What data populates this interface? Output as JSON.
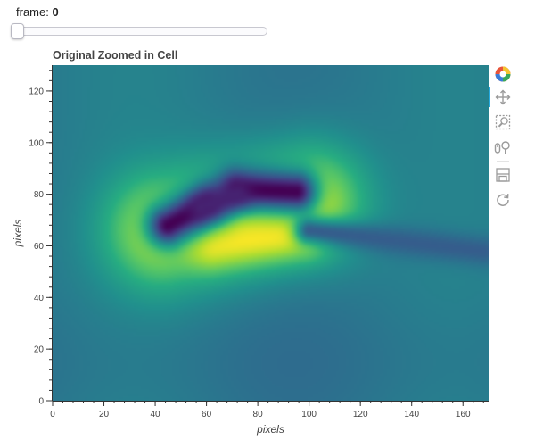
{
  "slider": {
    "label_prefix": "frame: ",
    "value_text": "0",
    "value": 0,
    "min": 0,
    "max": 100
  },
  "plot": {
    "title": "Original Zoomed in Cell",
    "xlabel": "pixels",
    "ylabel": "pixels"
  },
  "toolbar": {
    "tools": [
      {
        "name": "bokeh-logo-icon"
      },
      {
        "name": "pan-tool-icon"
      },
      {
        "name": "box-zoom-tool-icon"
      },
      {
        "name": "wheel-zoom-tool-icon"
      },
      {
        "name": "save-tool-icon"
      },
      {
        "name": "reset-tool-icon"
      }
    ],
    "active_color": "#26aae1"
  },
  "chart_data": {
    "type": "heatmap",
    "title": "Original Zoomed in Cell",
    "xlabel": "pixels",
    "ylabel": "pixels",
    "xlim": [
      0,
      170
    ],
    "ylim": [
      0,
      130
    ],
    "x_ticks": [
      0,
      20,
      40,
      60,
      80,
      100,
      120,
      140,
      160
    ],
    "y_ticks": [
      0,
      20,
      40,
      60,
      80,
      100,
      120
    ],
    "colormap": "viridis",
    "background_level": 0.42,
    "features": [
      {
        "kind": "bright-halo",
        "x0": 43,
        "y0": 66,
        "x1": 100,
        "y1": 77,
        "width": 15,
        "level": 0.96
      },
      {
        "kind": "bright-band",
        "x0": 63,
        "y0": 62,
        "x1": 97,
        "y1": 66,
        "width": 7,
        "level": 1.0
      },
      {
        "kind": "dark-body",
        "x0": 45,
        "y0": 68,
        "x1": 60,
        "y1": 76,
        "width": 6,
        "level": 0.0
      },
      {
        "kind": "dark-body",
        "x0": 72,
        "y0": 82,
        "x1": 95,
        "y1": 81,
        "width": 6,
        "level": 0.0
      },
      {
        "kind": "dark-body",
        "x0": 58,
        "y0": 75,
        "x1": 72,
        "y1": 80,
        "width": 4,
        "level": 0.1
      },
      {
        "kind": "tail",
        "x0": 100,
        "y0": 66,
        "x1": 168,
        "y1": 58,
        "width": 4,
        "level": 0.3
      }
    ]
  }
}
